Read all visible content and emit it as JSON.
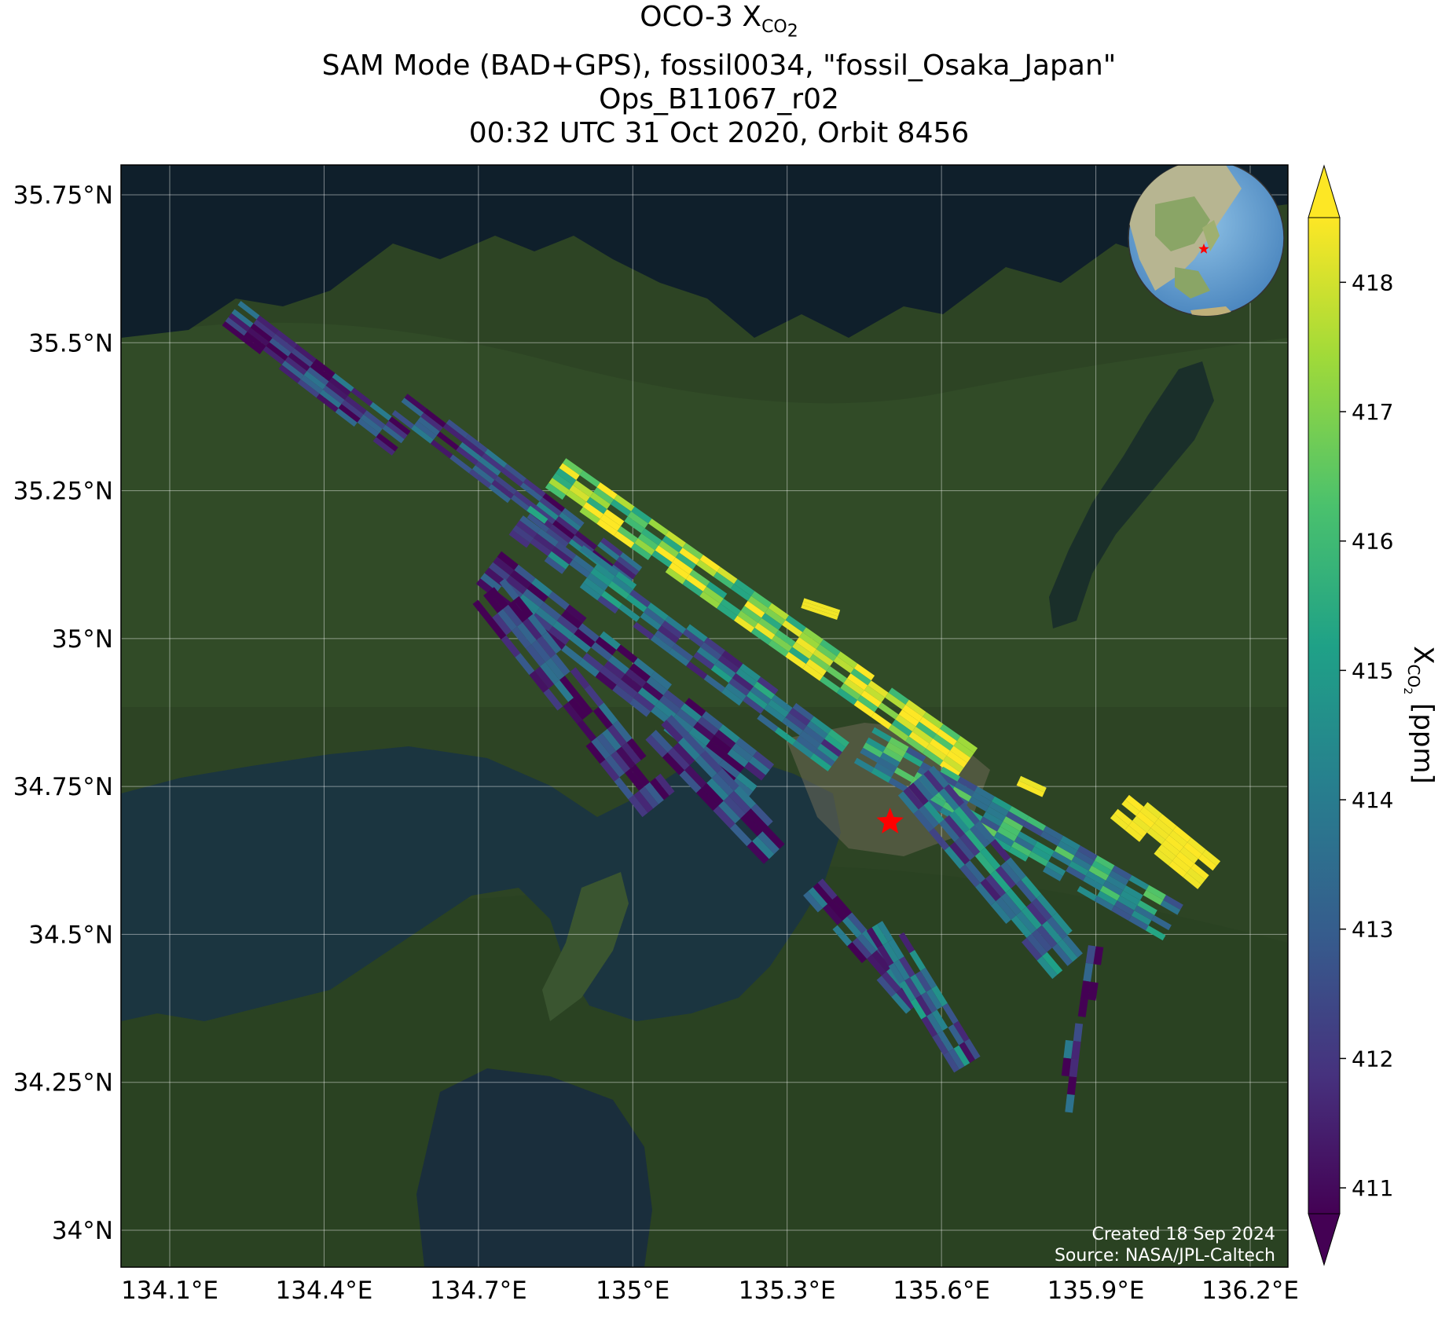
{
  "title": {
    "line1_prefix": "OCO-3 X",
    "line1_sub": "CO",
    "line1_sub2": "2",
    "line2": "SAM Mode (BAD+GPS), fossil0034, \"fossil_Osaka_Japan\"",
    "line3": "Ops_B11067_r02",
    "line4": "00:32 UTC 31 Oct 2020, Orbit 8456"
  },
  "credits": {
    "created": "Created 18 Sep 2024",
    "source": "Source: NASA/JPL-Caltech"
  },
  "colorbar": {
    "label_main": "X",
    "label_sub": "CO",
    "label_sub2": "2",
    "label_unit": " [ppm]",
    "ticks": [
      "411",
      "412",
      "413",
      "414",
      "415",
      "416",
      "417",
      "418"
    ],
    "range": [
      410.8,
      418.5
    ],
    "colormap": "viridis",
    "extend": "both"
  },
  "map": {
    "extent_lon": [
      134.0,
      136.4
    ],
    "extent_lat": [
      33.9,
      35.8
    ],
    "lon_ticks": [
      "134.1°E",
      "134.4°E",
      "134.7°E",
      "135°E",
      "135.3°E",
      "135.6°E",
      "135.9°E",
      "136.2°E"
    ],
    "lat_ticks": [
      "35.75°N",
      "35.5°N",
      "35.25°N",
      "35°N",
      "34.75°N",
      "34.5°N",
      "34.25°N",
      "34°N"
    ],
    "lon_values": [
      134.1,
      134.4,
      134.7,
      135.0,
      135.3,
      135.6,
      135.9,
      136.2
    ],
    "lat_values": [
      35.75,
      35.5,
      35.25,
      35.0,
      34.75,
      34.5,
      34.25,
      34.0
    ],
    "target_marker": {
      "lon": 135.5,
      "lat": 34.69,
      "symbol": "red-star"
    },
    "background": "satellite-imagery",
    "inset": "globe-locator"
  },
  "swaths": [
    {
      "lon0": 134.22,
      "lat0": 35.55,
      "lon1": 134.55,
      "lat1": 35.33,
      "w": 0.06,
      "cols": 6,
      "rows": 9,
      "bias": 0.15
    },
    {
      "lon0": 134.55,
      "lat0": 35.4,
      "lon1": 135.0,
      "lat1": 35.1,
      "w": 0.06,
      "cols": 6,
      "rows": 12,
      "bias": 0.2
    },
    {
      "lon0": 134.85,
      "lat0": 35.28,
      "lon1": 135.65,
      "lat1": 34.79,
      "w": 0.07,
      "cols": 6,
      "rows": 24,
      "bias": 0.85
    },
    {
      "lon0": 134.78,
      "lat0": 35.2,
      "lon1": 135.4,
      "lat1": 34.8,
      "w": 0.07,
      "cols": 6,
      "rows": 18,
      "bias": 0.35
    },
    {
      "lon0": 134.72,
      "lat0": 35.12,
      "lon1": 135.25,
      "lat1": 34.76,
      "w": 0.08,
      "cols": 6,
      "rows": 16,
      "bias": 0.2
    },
    {
      "lon0": 134.72,
      "lat0": 35.08,
      "lon1": 135.05,
      "lat1": 34.72,
      "w": 0.08,
      "cols": 6,
      "rows": 12,
      "bias": 0.15
    },
    {
      "lon0": 135.05,
      "lat0": 34.85,
      "lon1": 135.28,
      "lat1": 34.64,
      "w": 0.07,
      "cols": 5,
      "rows": 7,
      "bias": 0.15
    },
    {
      "lon0": 135.45,
      "lat0": 34.82,
      "lon1": 136.05,
      "lat1": 34.52,
      "w": 0.08,
      "cols": 7,
      "rows": 18,
      "bias": 0.5
    },
    {
      "lon0": 135.55,
      "lat0": 34.76,
      "lon1": 135.85,
      "lat1": 34.45,
      "w": 0.09,
      "cols": 7,
      "rows": 10,
      "bias": 0.35
    },
    {
      "lon0": 135.95,
      "lat0": 34.72,
      "lon1": 136.12,
      "lat1": 34.6,
      "w": 0.07,
      "cols": 6,
      "rows": 6,
      "bias": 1.0
    },
    {
      "lon0": 135.35,
      "lat0": 34.58,
      "lon1": 135.55,
      "lat1": 34.38,
      "w": 0.05,
      "cols": 4,
      "rows": 7,
      "bias": 0.2
    },
    {
      "lon0": 135.48,
      "lat0": 34.52,
      "lon1": 135.65,
      "lat1": 34.28,
      "w": 0.06,
      "cols": 5,
      "rows": 8,
      "bias": 0.3
    },
    {
      "lon0": 135.9,
      "lat0": 34.48,
      "lon1": 135.88,
      "lat1": 34.36,
      "w": 0.03,
      "cols": 2,
      "rows": 4,
      "bias": 0.15
    },
    {
      "lon0": 135.86,
      "lat0": 34.35,
      "lon1": 135.84,
      "lat1": 34.2,
      "w": 0.03,
      "cols": 2,
      "rows": 5,
      "bias": 0.15
    },
    {
      "lon0": 135.33,
      "lat0": 35.06,
      "lon1": 135.4,
      "lat1": 35.04,
      "w": 0.02,
      "cols": 3,
      "rows": 1,
      "bias": 1.0
    },
    {
      "lon0": 135.75,
      "lat0": 34.76,
      "lon1": 135.8,
      "lat1": 34.74,
      "w": 0.02,
      "cols": 2,
      "rows": 1,
      "bias": 1.0
    }
  ]
}
